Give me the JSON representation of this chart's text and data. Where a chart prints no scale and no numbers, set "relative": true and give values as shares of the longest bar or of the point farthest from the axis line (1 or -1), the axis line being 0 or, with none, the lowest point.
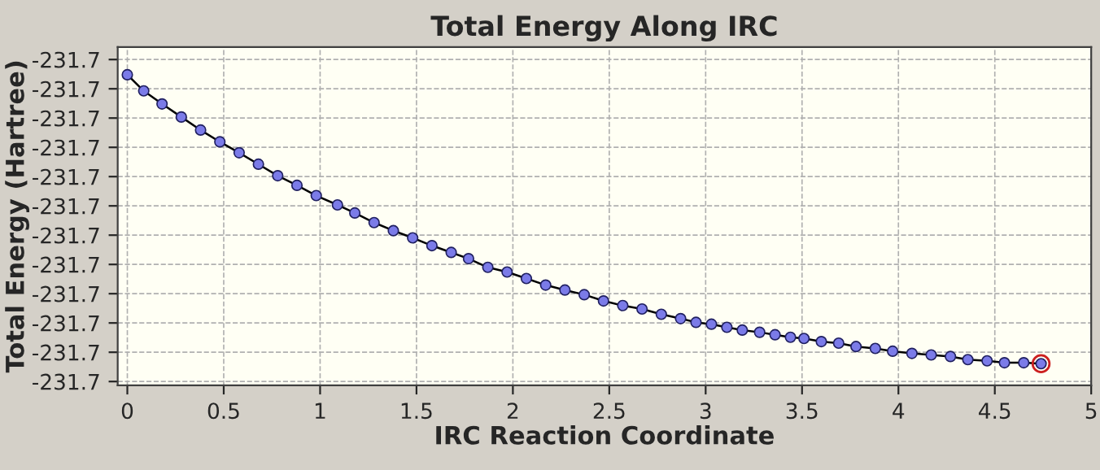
{
  "chart_data": {
    "type": "line",
    "title": "Total Energy Along IRC",
    "xlabel": "IRC Reaction Coordinate",
    "ylabel": "Total Energy (Hartree)",
    "relative": true,
    "marker": "circle",
    "line_style": "solid",
    "grid": true,
    "xlim": [
      -0.05,
      5
    ],
    "xticks": [
      0,
      0.5,
      1,
      1.5,
      2,
      2.5,
      3,
      3.5,
      4,
      4.5,
      5
    ],
    "annotations": [
      "-231.7",
      "-231.7",
      "-231.7",
      "-231.7",
      "-231.7",
      "-231.7",
      "-231.7",
      "-231.7",
      "-231.7",
      "-231.7",
      "-231.7",
      "-231.7"
    ],
    "series": [
      {
        "color": "#7b7be8",
        "x": [
          0,
          0.085,
          0.18,
          0.28,
          0.38,
          0.48,
          0.58,
          0.68,
          0.78,
          0.88,
          0.98,
          1.09,
          1.18,
          1.28,
          1.38,
          1.48,
          1.58,
          1.68,
          1.77,
          1.87,
          1.97,
          2.07,
          2.17,
          2.27,
          2.37,
          2.47,
          2.57,
          2.67,
          2.77,
          2.87,
          2.95,
          3.03,
          3.11,
          3.19,
          3.28,
          3.36,
          3.44,
          3.51,
          3.6,
          3.69,
          3.78,
          3.88,
          3.97,
          4.07,
          4.17,
          4.27,
          4.36,
          4.46,
          4.55,
          4.65,
          4.74
        ],
        "values": [
          1.0,
          0.948,
          0.906,
          0.864,
          0.822,
          0.784,
          0.749,
          0.712,
          0.675,
          0.644,
          0.611,
          0.581,
          0.555,
          0.524,
          0.498,
          0.475,
          0.45,
          0.428,
          0.408,
          0.38,
          0.365,
          0.344,
          0.323,
          0.307,
          0.292,
          0.272,
          0.257,
          0.246,
          0.229,
          0.215,
          0.203,
          0.197,
          0.187,
          0.178,
          0.171,
          0.163,
          0.155,
          0.151,
          0.141,
          0.136,
          0.125,
          0.119,
          0.11,
          0.103,
          0.098,
          0.093,
          0.083,
          0.079,
          0.073,
          0.073,
          0.07
        ]
      },
      {
        "type": "scatter",
        "color": "#cc2020",
        "x": [
          4.74
        ],
        "values": [
          0.07
        ]
      }
    ]
  }
}
